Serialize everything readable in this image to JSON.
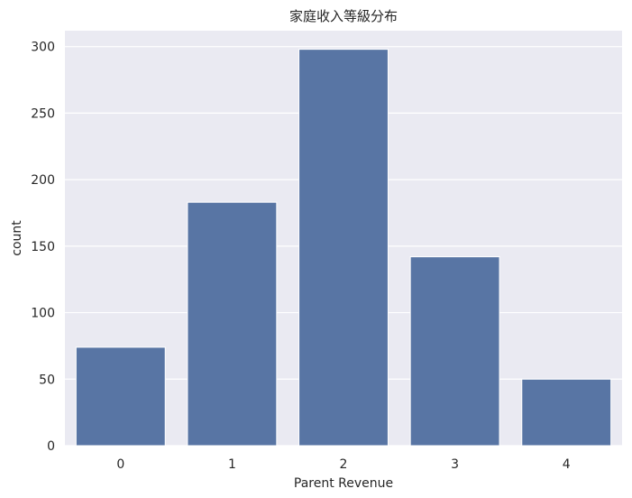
{
  "chart_data": {
    "type": "bar",
    "title": "家庭收入等級分布",
    "xlabel": "Parent Revenue",
    "ylabel": "count",
    "categories": [
      "0",
      "1",
      "2",
      "3",
      "4"
    ],
    "values": [
      74,
      183,
      298,
      142,
      50
    ],
    "ylim": [
      0,
      312
    ],
    "yticks": [
      0,
      50,
      100,
      150,
      200,
      250,
      300
    ],
    "grid": true,
    "legend": "none",
    "colors": {
      "bar": "#5875a4",
      "plot_background": "#eaeaf2",
      "gridline": "#ffffff",
      "text": "#262626"
    }
  }
}
